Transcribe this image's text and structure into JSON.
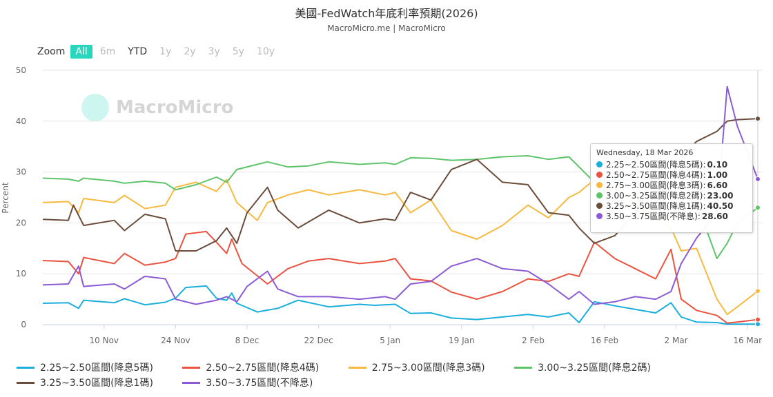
{
  "title": "美國-FedWatch年底利率預期(2026)",
  "subtitle": "MacroMicro.me | MacroMicro",
  "watermark": "MacroMicro",
  "zoom": {
    "label": "Zoom",
    "buttons": [
      "All",
      "6m",
      "YTD",
      "1y",
      "2y",
      "3y",
      "5y",
      "10y"
    ],
    "active": "All"
  },
  "tooltip": {
    "date": "Wednesday, 18 Mar 2026",
    "rows": [
      {
        "label": "2.25~2.50區間(降息5碼):",
        "value": "0.10",
        "color": "#1aaedb"
      },
      {
        "label": "2.50~2.75區間(降息4碼):",
        "value": "1.00",
        "color": "#e9533f"
      },
      {
        "label": "2.75~3.00區間(降息3碼):",
        "value": "6.60",
        "color": "#f7b93f"
      },
      {
        "label": "3.00~3.25區間(降息2碼):",
        "value": "23.00",
        "color": "#5ec46a"
      },
      {
        "label": "3.25~3.50區間(降息1碼):",
        "value": "40.50",
        "color": "#6b4c3b"
      },
      {
        "label": "3.50~3.75區間(不降息):",
        "value": "28.60",
        "color": "#8b5bd6"
      }
    ]
  },
  "chart_data": {
    "type": "line",
    "ylabel": "Percent",
    "ylim": [
      0,
      50
    ],
    "yticks": [
      0,
      10,
      20,
      30,
      40,
      50
    ],
    "x_start": "2025-10-29",
    "x_end": "2026-03-18",
    "x_tick_dates": [
      "2025-11-10",
      "2025-11-24",
      "2025-12-08",
      "2025-12-22",
      "2026-01-05",
      "2026-01-19",
      "2026-02-02",
      "2026-02-16",
      "2026-03-02",
      "2026-03-16"
    ],
    "x_tick_labels": [
      "10 Nov",
      "24 Nov",
      "8 Dec",
      "22 Dec",
      "5 Jan",
      "19 Jan",
      "2 Feb",
      "16 Feb",
      "2 Mar",
      "16 Mar"
    ],
    "grid": true,
    "legend_position": "bottom",
    "series": [
      {
        "name": "2.25~2.50區間(降息5碼)",
        "color": "#1aaedb",
        "points": [
          [
            "2025-10-29",
            4.2
          ],
          [
            "2025-11-03",
            4.3
          ],
          [
            "2025-11-05",
            3.2
          ],
          [
            "2025-11-06",
            4.8
          ],
          [
            "2025-11-12",
            4.3
          ],
          [
            "2025-11-14",
            5.1
          ],
          [
            "2025-11-18",
            3.9
          ],
          [
            "2025-11-22",
            4.4
          ],
          [
            "2025-11-24",
            5.2
          ],
          [
            "2025-11-26",
            7.3
          ],
          [
            "2025-11-30",
            7.6
          ],
          [
            "2025-12-02",
            5.2
          ],
          [
            "2025-12-04",
            4.8
          ],
          [
            "2025-12-05",
            6.2
          ],
          [
            "2025-12-06",
            4.2
          ],
          [
            "2025-12-10",
            2.5
          ],
          [
            "2025-12-14",
            3.2
          ],
          [
            "2025-12-18",
            4.8
          ],
          [
            "2025-12-24",
            3.5
          ],
          [
            "2025-12-30",
            4.0
          ],
          [
            "2026-01-02",
            3.8
          ],
          [
            "2026-01-06",
            4.0
          ],
          [
            "2026-01-09",
            2.2
          ],
          [
            "2026-01-13",
            2.3
          ],
          [
            "2026-01-17",
            1.3
          ],
          [
            "2026-01-22",
            1.0
          ],
          [
            "2026-01-27",
            1.5
          ],
          [
            "2026-02-01",
            2.0
          ],
          [
            "2026-02-05",
            1.5
          ],
          [
            "2026-02-09",
            2.3
          ],
          [
            "2026-02-11",
            0.4
          ],
          [
            "2026-02-14",
            4.5
          ],
          [
            "2026-02-18",
            3.7
          ],
          [
            "2026-02-22",
            3.0
          ],
          [
            "2026-02-26",
            2.3
          ],
          [
            "2026-03-01",
            4.3
          ],
          [
            "2026-03-03",
            1.5
          ],
          [
            "2026-03-06",
            0.5
          ],
          [
            "2026-03-10",
            0.4
          ],
          [
            "2026-03-12",
            0.1
          ],
          [
            "2026-03-18",
            0.1
          ]
        ]
      },
      {
        "name": "2.50~2.75區間(降息4碼)",
        "color": "#e9533f",
        "points": [
          [
            "2025-10-29",
            12.6
          ],
          [
            "2025-11-03",
            12.4
          ],
          [
            "2025-11-05",
            10.0
          ],
          [
            "2025-11-06",
            13.2
          ],
          [
            "2025-11-12",
            12.0
          ],
          [
            "2025-11-14",
            14.0
          ],
          [
            "2025-11-18",
            11.7
          ],
          [
            "2025-11-22",
            12.3
          ],
          [
            "2025-11-24",
            13.0
          ],
          [
            "2025-11-26",
            17.8
          ],
          [
            "2025-11-30",
            18.3
          ],
          [
            "2025-12-02",
            16.2
          ],
          [
            "2025-12-04",
            14.0
          ],
          [
            "2025-12-05",
            16.8
          ],
          [
            "2025-12-07",
            12.0
          ],
          [
            "2025-12-12",
            8.0
          ],
          [
            "2025-12-16",
            11.0
          ],
          [
            "2025-12-20",
            12.5
          ],
          [
            "2025-12-24",
            13.0
          ],
          [
            "2025-12-30",
            12.0
          ],
          [
            "2026-01-04",
            12.5
          ],
          [
            "2026-01-06",
            13.0
          ],
          [
            "2026-01-09",
            9.0
          ],
          [
            "2026-01-13",
            8.6
          ],
          [
            "2026-01-17",
            6.4
          ],
          [
            "2026-01-22",
            5.0
          ],
          [
            "2026-01-27",
            6.5
          ],
          [
            "2026-02-01",
            9.0
          ],
          [
            "2026-02-05",
            8.5
          ],
          [
            "2026-02-09",
            10.0
          ],
          [
            "2026-02-11",
            9.5
          ],
          [
            "2026-02-14",
            16.2
          ],
          [
            "2026-02-18",
            13.0
          ],
          [
            "2026-02-22",
            11.0
          ],
          [
            "2026-02-26",
            9.0
          ],
          [
            "2026-03-01",
            14.8
          ],
          [
            "2026-03-03",
            5.0
          ],
          [
            "2026-03-06",
            2.8
          ],
          [
            "2026-03-10",
            1.8
          ],
          [
            "2026-03-12",
            0.3
          ],
          [
            "2026-03-14",
            0.5
          ],
          [
            "2026-03-18",
            1.0
          ]
        ]
      },
      {
        "name": "2.75~3.00區間(降息3碼)",
        "color": "#f7b93f",
        "points": [
          [
            "2025-10-29",
            24.0
          ],
          [
            "2025-11-03",
            24.2
          ],
          [
            "2025-11-05",
            22.0
          ],
          [
            "2025-11-06",
            24.8
          ],
          [
            "2025-11-12",
            24.0
          ],
          [
            "2025-11-14",
            25.4
          ],
          [
            "2025-11-18",
            22.8
          ],
          [
            "2025-11-22",
            23.5
          ],
          [
            "2025-11-24",
            27.0
          ],
          [
            "2025-11-28",
            28.0
          ],
          [
            "2025-12-02",
            26.2
          ],
          [
            "2025-12-04",
            28.5
          ],
          [
            "2025-12-06",
            24.0
          ],
          [
            "2025-12-10",
            20.5
          ],
          [
            "2025-12-12",
            24.0
          ],
          [
            "2025-12-16",
            25.5
          ],
          [
            "2025-12-20",
            26.5
          ],
          [
            "2025-12-24",
            25.5
          ],
          [
            "2025-12-30",
            26.5
          ],
          [
            "2026-01-04",
            25.5
          ],
          [
            "2026-01-06",
            26.0
          ],
          [
            "2026-01-09",
            22.0
          ],
          [
            "2026-01-13",
            24.5
          ],
          [
            "2026-01-17",
            18.5
          ],
          [
            "2026-01-22",
            16.8
          ],
          [
            "2026-01-27",
            19.5
          ],
          [
            "2026-02-01",
            23.5
          ],
          [
            "2026-02-05",
            21.0
          ],
          [
            "2026-02-09",
            25.0
          ],
          [
            "2026-02-11",
            26.0
          ],
          [
            "2026-02-14",
            28.5
          ],
          [
            "2026-02-18",
            26.5
          ],
          [
            "2026-02-22",
            24.0
          ],
          [
            "2026-02-26",
            21.0
          ],
          [
            "2026-03-01",
            19.0
          ],
          [
            "2026-03-03",
            14.5
          ],
          [
            "2026-03-06",
            15.0
          ],
          [
            "2026-03-10",
            5.0
          ],
          [
            "2026-03-12",
            2.0
          ],
          [
            "2026-03-14",
            3.5
          ],
          [
            "2026-03-18",
            6.6
          ]
        ]
      },
      {
        "name": "3.00~3.25區間(降息2碼)",
        "color": "#5ec46a",
        "points": [
          [
            "2025-10-29",
            28.8
          ],
          [
            "2025-11-03",
            28.6
          ],
          [
            "2025-11-05",
            28.2
          ],
          [
            "2025-11-06",
            28.8
          ],
          [
            "2025-11-12",
            28.2
          ],
          [
            "2025-11-14",
            27.8
          ],
          [
            "2025-11-18",
            28.2
          ],
          [
            "2025-11-22",
            27.8
          ],
          [
            "2025-11-24",
            26.5
          ],
          [
            "2025-11-28",
            27.5
          ],
          [
            "2025-12-02",
            29.0
          ],
          [
            "2025-12-04",
            28.0
          ],
          [
            "2025-12-06",
            30.5
          ],
          [
            "2025-12-10",
            31.5
          ],
          [
            "2025-12-12",
            32.0
          ],
          [
            "2025-12-16",
            31.0
          ],
          [
            "2025-12-20",
            31.2
          ],
          [
            "2025-12-24",
            32.0
          ],
          [
            "2025-12-30",
            31.5
          ],
          [
            "2026-01-04",
            31.8
          ],
          [
            "2026-01-06",
            31.5
          ],
          [
            "2026-01-09",
            32.8
          ],
          [
            "2026-01-13",
            32.7
          ],
          [
            "2026-01-17",
            32.3
          ],
          [
            "2026-01-22",
            32.5
          ],
          [
            "2026-01-27",
            33.0
          ],
          [
            "2026-02-01",
            33.2
          ],
          [
            "2026-02-05",
            32.5
          ],
          [
            "2026-02-09",
            33.0
          ],
          [
            "2026-02-11",
            31.0
          ],
          [
            "2026-02-14",
            28.0
          ],
          [
            "2026-02-18",
            28.5
          ],
          [
            "2026-02-22",
            28.5
          ],
          [
            "2026-02-26",
            24.0
          ],
          [
            "2026-03-01",
            27.0
          ],
          [
            "2026-03-03",
            26.5
          ],
          [
            "2026-03-06",
            24.0
          ],
          [
            "2026-03-10",
            13.0
          ],
          [
            "2026-03-12",
            16.0
          ],
          [
            "2026-03-14",
            20.0
          ],
          [
            "2026-03-18",
            23.0
          ]
        ]
      },
      {
        "name": "3.25~3.50區間(降息1碼)",
        "color": "#6b4c3b",
        "points": [
          [
            "2025-10-29",
            20.7
          ],
          [
            "2025-11-03",
            20.5
          ],
          [
            "2025-11-04",
            23.5
          ],
          [
            "2025-11-06",
            19.5
          ],
          [
            "2025-11-12",
            20.5
          ],
          [
            "2025-11-14",
            18.5
          ],
          [
            "2025-11-18",
            21.7
          ],
          [
            "2025-11-22",
            20.8
          ],
          [
            "2025-11-24",
            14.5
          ],
          [
            "2025-11-28",
            14.5
          ],
          [
            "2025-12-02",
            16.5
          ],
          [
            "2025-12-04",
            19.0
          ],
          [
            "2025-12-06",
            16.0
          ],
          [
            "2025-12-08",
            22.0
          ],
          [
            "2025-12-12",
            27.0
          ],
          [
            "2025-12-14",
            22.5
          ],
          [
            "2025-12-18",
            19.0
          ],
          [
            "2025-12-24",
            22.5
          ],
          [
            "2025-12-30",
            20.0
          ],
          [
            "2026-01-04",
            20.8
          ],
          [
            "2026-01-06",
            20.5
          ],
          [
            "2026-01-09",
            26.0
          ],
          [
            "2026-01-13",
            24.5
          ],
          [
            "2026-01-17",
            30.5
          ],
          [
            "2026-01-22",
            32.5
          ],
          [
            "2026-01-27",
            28.0
          ],
          [
            "2026-02-01",
            27.5
          ],
          [
            "2026-02-05",
            22.0
          ],
          [
            "2026-02-09",
            21.5
          ],
          [
            "2026-02-11",
            19.0
          ],
          [
            "2026-02-14",
            16.0
          ],
          [
            "2026-02-18",
            17.5
          ],
          [
            "2026-02-22",
            22.0
          ],
          [
            "2026-02-26",
            30.0
          ],
          [
            "2026-03-01",
            29.0
          ],
          [
            "2026-03-03",
            33.0
          ],
          [
            "2026-03-06",
            36.0
          ],
          [
            "2026-03-10",
            38.0
          ],
          [
            "2026-03-12",
            40.0
          ],
          [
            "2026-03-14",
            40.3
          ],
          [
            "2026-03-18",
            40.5
          ]
        ]
      },
      {
        "name": "3.50~3.75區間(不降息)",
        "color": "#8b5bd6",
        "points": [
          [
            "2025-10-29",
            7.8
          ],
          [
            "2025-11-03",
            8.0
          ],
          [
            "2025-11-05",
            11.5
          ],
          [
            "2025-11-06",
            7.5
          ],
          [
            "2025-11-12",
            8.0
          ],
          [
            "2025-11-14",
            7.0
          ],
          [
            "2025-11-18",
            9.5
          ],
          [
            "2025-11-22",
            9.0
          ],
          [
            "2025-11-24",
            5.0
          ],
          [
            "2025-11-28",
            4.0
          ],
          [
            "2025-12-02",
            4.8
          ],
          [
            "2025-12-04",
            5.5
          ],
          [
            "2025-12-06",
            4.5
          ],
          [
            "2025-12-08",
            7.5
          ],
          [
            "2025-12-12",
            10.5
          ],
          [
            "2025-12-14",
            7.0
          ],
          [
            "2025-12-18",
            5.5
          ],
          [
            "2025-12-24",
            5.5
          ],
          [
            "2025-12-30",
            5.0
          ],
          [
            "2026-01-04",
            5.5
          ],
          [
            "2026-01-06",
            5.0
          ],
          [
            "2026-01-09",
            8.0
          ],
          [
            "2026-01-13",
            8.5
          ],
          [
            "2026-01-17",
            11.5
          ],
          [
            "2026-01-22",
            13.0
          ],
          [
            "2026-01-27",
            11.0
          ],
          [
            "2026-02-01",
            10.5
          ],
          [
            "2026-02-05",
            8.0
          ],
          [
            "2026-02-09",
            5.0
          ],
          [
            "2026-02-11",
            6.5
          ],
          [
            "2026-02-14",
            4.0
          ],
          [
            "2026-02-18",
            4.5
          ],
          [
            "2026-02-22",
            5.5
          ],
          [
            "2026-02-26",
            5.0
          ],
          [
            "2026-03-01",
            6.5
          ],
          [
            "2026-03-03",
            12.0
          ],
          [
            "2026-03-06",
            17.0
          ],
          [
            "2026-03-10",
            22.0
          ],
          [
            "2026-03-12",
            46.8
          ],
          [
            "2026-03-14",
            39.0
          ],
          [
            "2026-03-18",
            28.6
          ]
        ]
      }
    ]
  }
}
